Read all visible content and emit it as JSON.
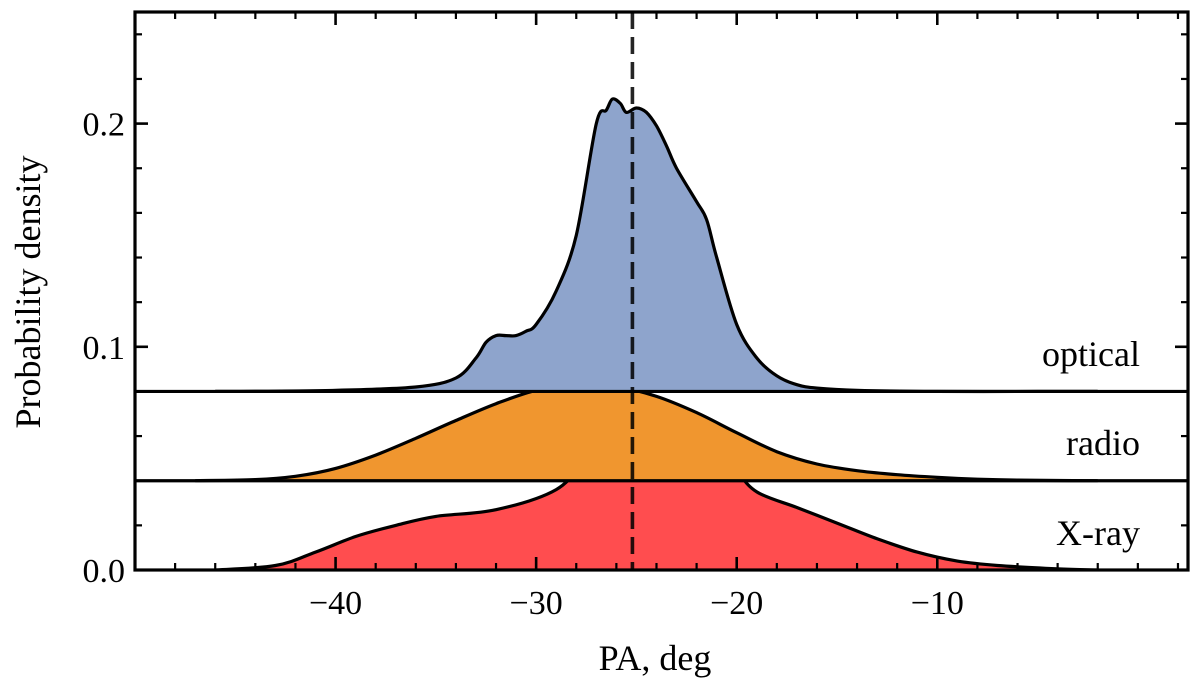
{
  "chart_data": {
    "type": "area",
    "title": "",
    "xlabel": "PA, deg",
    "ylabel": "Probability density",
    "xlim": [
      -50,
      2.5
    ],
    "ylim": [
      0,
      0.25
    ],
    "xticks": [
      -40,
      -30,
      -20,
      -10
    ],
    "xtick_labels": [
      "−40",
      "−30",
      "−20",
      "−10"
    ],
    "xminor_step": 2,
    "yticks": [
      0.0,
      0.1,
      0.2
    ],
    "ytick_labels": [
      "0.0",
      "0.1",
      "0.2"
    ],
    "yminor_step": 0.02,
    "reference_line": {
      "x": -25.2,
      "style": "dashed",
      "color": "#000000"
    },
    "series": [
      {
        "name": "X-ray",
        "label": "X-ray",
        "color": "#ff4d4f",
        "baseline": 0.0,
        "x": [
          -46,
          -43,
          -41,
          -39,
          -37,
          -35,
          -32,
          -29,
          -27.5,
          -26.5,
          -25.5,
          -24.5,
          -23.5,
          -22.5,
          -21.5,
          -21,
          -20,
          -19,
          -17,
          -15,
          -13,
          -11,
          -9,
          -7,
          -4,
          -2
        ],
        "y": [
          0.0,
          0.002,
          0.008,
          0.015,
          0.02,
          0.024,
          0.027,
          0.036,
          0.05,
          0.059,
          0.064,
          0.065,
          0.064,
          0.063,
          0.063,
          0.06,
          0.045,
          0.035,
          0.028,
          0.021,
          0.014,
          0.008,
          0.004,
          0.002,
          0.0005,
          0.0
        ]
      },
      {
        "name": "radio",
        "label": "radio",
        "color": "#f0962f",
        "baseline": 0.04,
        "x": [
          -47,
          -44,
          -42,
          -40,
          -38,
          -36,
          -34,
          -32,
          -30,
          -28,
          -26,
          -24,
          -22,
          -20,
          -18,
          -16,
          -14,
          -12,
          -10,
          -8,
          -6,
          -4,
          -2
        ],
        "y": [
          0.04,
          0.0405,
          0.042,
          0.0455,
          0.0515,
          0.059,
          0.067,
          0.0745,
          0.0805,
          0.083,
          0.0822,
          0.0778,
          0.0705,
          0.0615,
          0.053,
          0.0475,
          0.0445,
          0.0427,
          0.0415,
          0.0407,
          0.0403,
          0.0401,
          0.04
        ]
      },
      {
        "name": "optical",
        "label": "optical",
        "color": "#8ea4cc",
        "baseline": 0.08,
        "x": [
          -46,
          -40,
          -36,
          -34,
          -33,
          -32.5,
          -32,
          -31.5,
          -31,
          -30.5,
          -30,
          -29,
          -28,
          -27,
          -26.5,
          -26.2,
          -25.8,
          -25.5,
          -25,
          -24.5,
          -24,
          -23.5,
          -23,
          -22,
          -21.5,
          -21,
          -20,
          -19,
          -18,
          -17,
          -16,
          -14,
          -10,
          -5,
          -2
        ],
        "y": [
          0.08,
          0.0805,
          0.082,
          0.086,
          0.095,
          0.102,
          0.105,
          0.105,
          0.105,
          0.107,
          0.11,
          0.125,
          0.15,
          0.2,
          0.206,
          0.211,
          0.209,
          0.205,
          0.207,
          0.205,
          0.199,
          0.19,
          0.18,
          0.165,
          0.157,
          0.14,
          0.11,
          0.095,
          0.087,
          0.083,
          0.0815,
          0.0805,
          0.08,
          0.08,
          0.08
        ]
      }
    ]
  }
}
